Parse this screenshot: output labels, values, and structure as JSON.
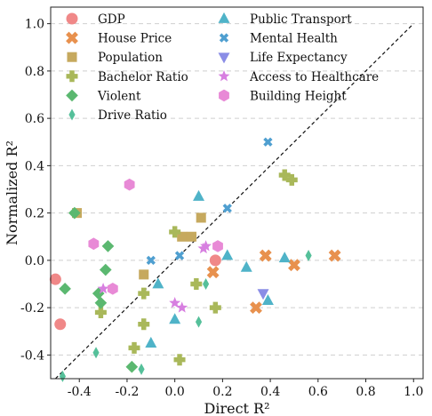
{
  "chart_data": {
    "type": "scatter",
    "xlabel": "Direct R²",
    "ylabel": "Normalized R²",
    "xlim": [
      -0.52,
      1.04
    ],
    "ylim": [
      -0.5,
      1.07
    ],
    "xticks": [
      "-0.4",
      "-0.2",
      "0.0",
      "0.2",
      "0.4",
      "0.6",
      "0.8",
      "1.0"
    ],
    "xtick_values": [
      -0.4,
      -0.2,
      0.0,
      0.2,
      0.4,
      0.6,
      0.8,
      1.0
    ],
    "yticks": [
      "-0.4",
      "-0.2",
      "0.0",
      "0.2",
      "0.4",
      "0.6",
      "0.8",
      "1.0"
    ],
    "ytick_values": [
      -0.4,
      -0.2,
      0.0,
      0.2,
      0.4,
      0.6,
      0.8,
      1.0
    ],
    "grid": "horizontal dashed",
    "diagonal": "y = x dashed",
    "legend_position": "top-left",
    "series": [
      {
        "name": "GDP",
        "marker": "circle",
        "color": "#f08888",
        "x": [
          -0.5,
          -0.48,
          0.17
        ],
        "y": [
          -0.08,
          -0.27,
          0.0
        ]
      },
      {
        "name": "House Price",
        "marker": "x",
        "color": "#e8914e",
        "x": [
          0.16,
          0.34,
          0.38,
          0.5,
          0.67
        ],
        "y": [
          -0.05,
          -0.2,
          0.02,
          -0.02,
          0.02
        ]
      },
      {
        "name": "Population",
        "marker": "square",
        "color": "#c6a95e",
        "x": [
          -0.41,
          -0.13,
          0.03,
          0.07,
          0.11
        ],
        "y": [
          0.2,
          -0.06,
          0.1,
          0.1,
          0.18
        ]
      },
      {
        "name": "Bachelor Ratio",
        "marker": "plus",
        "color": "#a9b85a",
        "x": [
          -0.31,
          -0.17,
          -0.13,
          -0.13,
          0.0,
          0.02,
          0.09,
          0.17,
          0.46,
          0.49
        ],
        "y": [
          -0.22,
          -0.37,
          -0.27,
          -0.14,
          0.12,
          -0.42,
          -0.1,
          -0.2,
          0.36,
          0.34
        ]
      },
      {
        "name": "Violent",
        "marker": "diamond",
        "color": "#5bb870",
        "x": [
          -0.42,
          -0.46,
          -0.31,
          -0.29,
          -0.28,
          -0.32,
          -0.18
        ],
        "y": [
          0.2,
          -0.12,
          -0.18,
          -0.04,
          0.06,
          -0.14,
          -0.45
        ]
      },
      {
        "name": "Drive Ratio",
        "marker": "thin-diamond",
        "color": "#55c09a",
        "x": [
          -0.47,
          -0.33,
          -0.14,
          0.13,
          0.1,
          0.56
        ],
        "y": [
          -0.49,
          -0.39,
          -0.46,
          -0.1,
          -0.26,
          0.02
        ]
      },
      {
        "name": "Public Transport",
        "marker": "triangle-up",
        "color": "#4fb3c8",
        "x": [
          0.1,
          0.22,
          0.3,
          -0.07,
          -0.1,
          0.0,
          0.46,
          0.39
        ],
        "y": [
          0.27,
          0.02,
          -0.03,
          -0.1,
          -0.35,
          -0.25,
          0.01,
          -0.17
        ]
      },
      {
        "name": "Mental Health",
        "marker": "x-small",
        "color": "#4f9fd0",
        "x": [
          0.39,
          0.22,
          -0.1,
          0.02
        ],
        "y": [
          0.5,
          0.22,
          0.0,
          0.02
        ]
      },
      {
        "name": "Life Expectancy",
        "marker": "triangle-down",
        "color": "#8a8de6",
        "x": [
          0.37
        ],
        "y": [
          -0.14
        ]
      },
      {
        "name": "Access to Healthcare",
        "marker": "star",
        "color": "#d77fe0",
        "x": [
          -0.3,
          0.0,
          0.03,
          0.13,
          0.12
        ],
        "y": [
          -0.12,
          -0.18,
          -0.2,
          0.06,
          0.05
        ]
      },
      {
        "name": "Building Height",
        "marker": "hexagon",
        "color": "#e88ad6",
        "x": [
          -0.19,
          -0.34,
          -0.26,
          0.18
        ],
        "y": [
          0.32,
          0.07,
          -0.12,
          0.06
        ]
      }
    ]
  }
}
